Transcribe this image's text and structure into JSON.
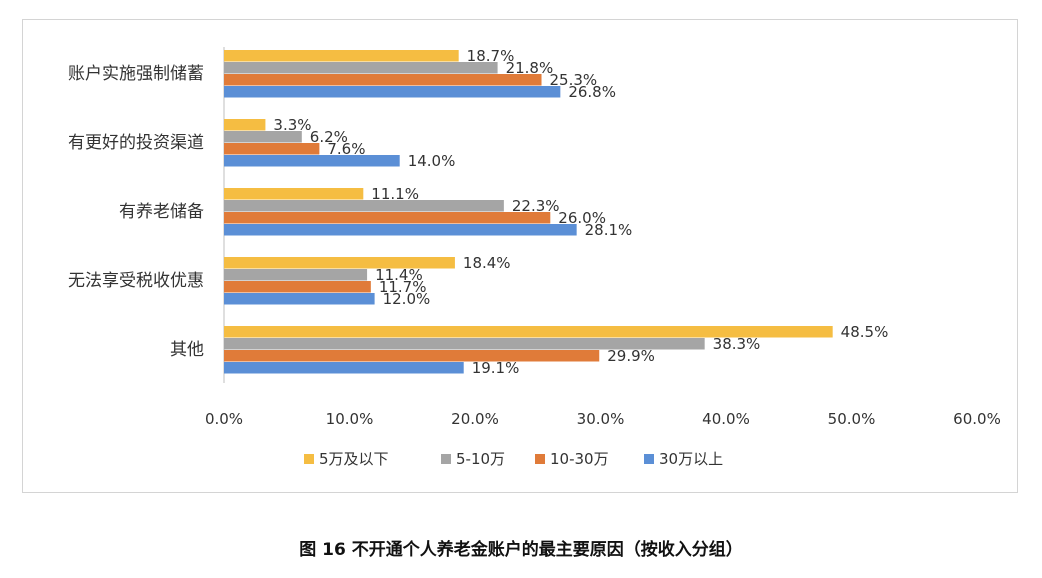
{
  "caption": "图 16 不开通个人养老金账户的最主要原因（按收入分组）",
  "chart_data": {
    "type": "bar",
    "orientation": "horizontal",
    "categories": [
      "账户实施强制储蓄",
      "有更好的投资渠道",
      "有养老储备",
      "无法享受税收优惠",
      "其他"
    ],
    "series": [
      {
        "name": "5万及以下",
        "color": "#F5BD42",
        "values": [
          18.7,
          3.3,
          11.1,
          18.4,
          48.5
        ]
      },
      {
        "name": "5-10万",
        "color": "#A5A5A5",
        "values": [
          21.8,
          6.2,
          22.3,
          11.4,
          38.3
        ]
      },
      {
        "name": "10-30万",
        "color": "#E07B39",
        "values": [
          25.3,
          7.6,
          26.0,
          11.7,
          29.9
        ]
      },
      {
        "name": "30万以上",
        "color": "#5B8FD6",
        "values": [
          26.8,
          14.0,
          28.1,
          12.0,
          19.1
        ]
      }
    ],
    "value_format": "percent_1dp",
    "xlim": [
      0,
      60
    ],
    "xticks": [
      0,
      10,
      20,
      30,
      40,
      50,
      60
    ],
    "tick_labels": [
      "0.0%",
      "10.0%",
      "20.0%",
      "30.0%",
      "40.0%",
      "50.0%",
      "60.0%"
    ],
    "data_labels": [
      [
        "18.7%",
        "21.8%",
        "25.3%",
        "26.8%"
      ],
      [
        "3.3%",
        "6.2%",
        "7.6%",
        "14.0%"
      ],
      [
        "11.1%",
        "22.3%",
        "26.0%",
        "28.1%"
      ],
      [
        "18.4%",
        "11.4%",
        "11.7%",
        "12.0%"
      ],
      [
        "48.5%",
        "38.3%",
        "29.9%",
        "19.1%"
      ]
    ],
    "grid": false,
    "legend": "bottom"
  }
}
